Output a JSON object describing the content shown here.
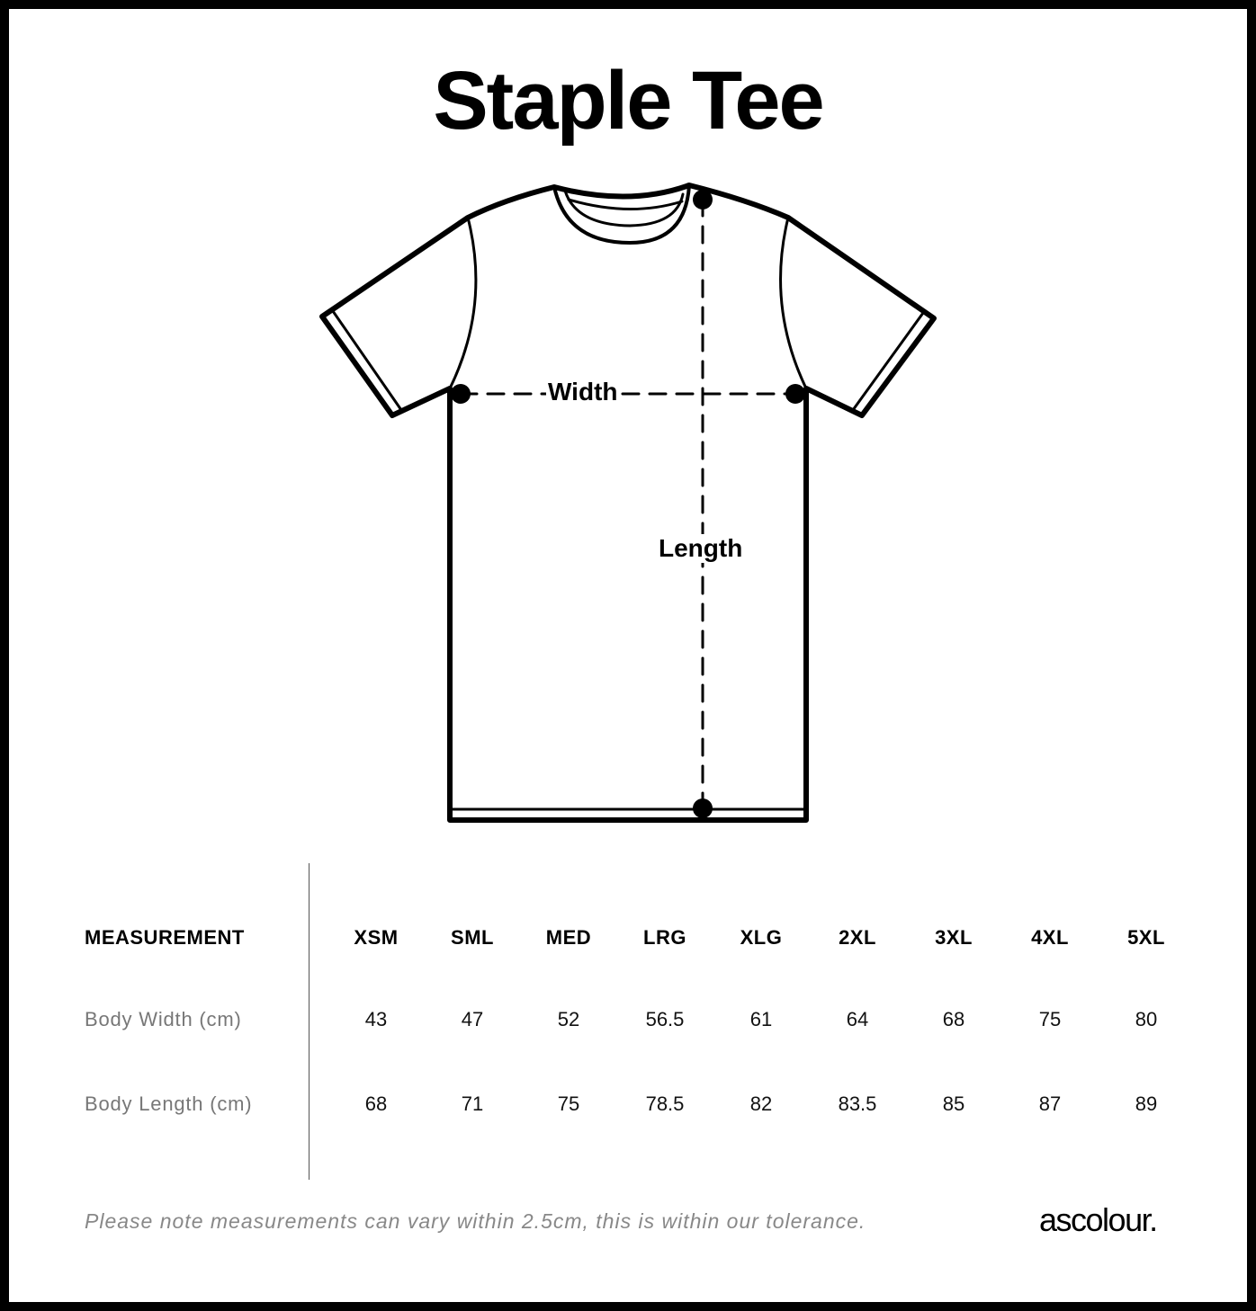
{
  "title": "Staple Tee",
  "diagram": {
    "width_label": "Width",
    "length_label": "Length"
  },
  "table": {
    "header_label": "MEASUREMENT",
    "sizes": [
      "XSM",
      "SML",
      "MED",
      "LRG",
      "XLG",
      "2XL",
      "3XL",
      "4XL",
      "5XL"
    ],
    "rows": [
      {
        "label": "Body Width (cm)",
        "values": [
          "43",
          "47",
          "52",
          "56.5",
          "61",
          "64",
          "68",
          "75",
          "80"
        ]
      },
      {
        "label": "Body Length (cm)",
        "values": [
          "68",
          "71",
          "75",
          "78.5",
          "82",
          "83.5",
          "85",
          "87",
          "89"
        ]
      }
    ]
  },
  "footer": {
    "note": "Please note measurements can vary within 2.5cm, this is within our tolerance.",
    "brand": "ascolour."
  }
}
